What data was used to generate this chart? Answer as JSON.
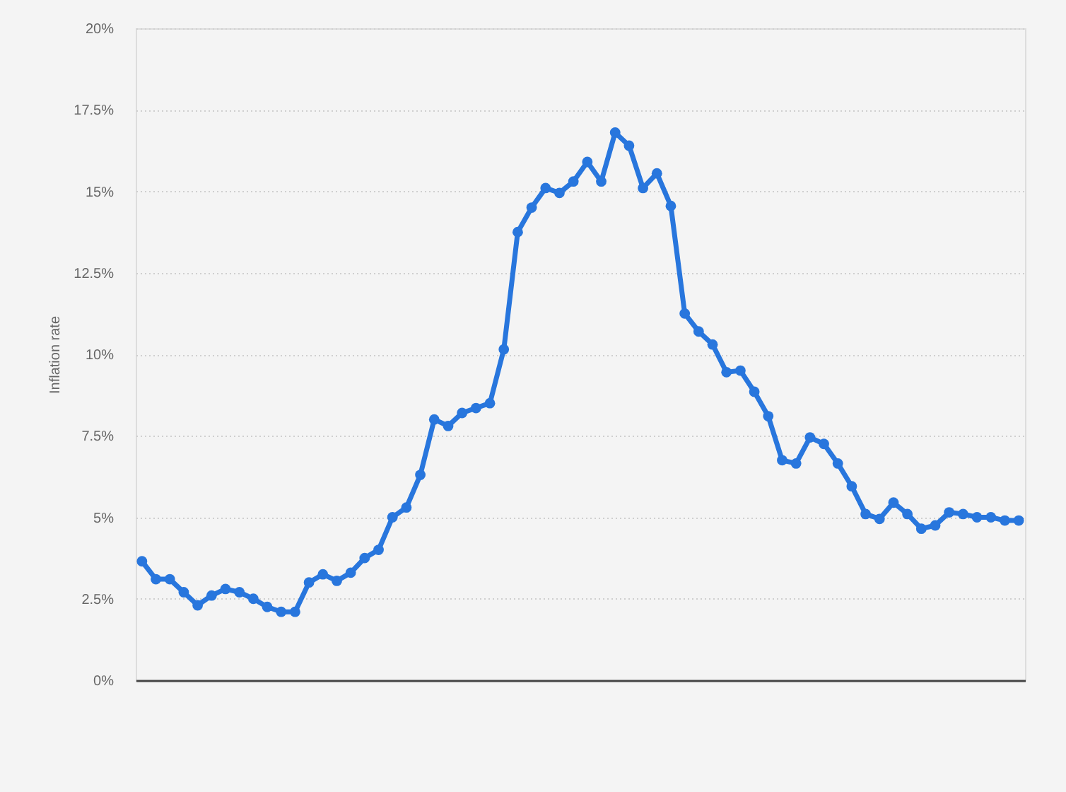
{
  "chart_data": {
    "type": "line",
    "ylabel": "Inflation rate",
    "categories": [
      null,
      null,
      null,
      null,
      null,
      null,
      null,
      null,
      null,
      null,
      null,
      null,
      null,
      null,
      null,
      null,
      null,
      null,
      null,
      null,
      null,
      null,
      null,
      null,
      null,
      null,
      null,
      null,
      null,
      null,
      null,
      null,
      null,
      null,
      null,
      null,
      null,
      null,
      null,
      null,
      null,
      null,
      null,
      null,
      null,
      null,
      null,
      null,
      null,
      null,
      null,
      null,
      null,
      null,
      null,
      null,
      null,
      null,
      null,
      null,
      null,
      null,
      null,
      null
    ],
    "series": [
      {
        "color": "#2876dd",
        "values": [
          3.65,
          3.1,
          3.1,
          2.7,
          2.3,
          2.6,
          2.8,
          2.7,
          2.5,
          2.25,
          2.1,
          2.1,
          3.0,
          3.25,
          3.05,
          3.3,
          3.75,
          4.0,
          5.0,
          5.3,
          6.3,
          8.0,
          7.8,
          8.2,
          8.35,
          8.5,
          10.15,
          13.75,
          14.5,
          15.1,
          14.95,
          15.3,
          15.9,
          15.3,
          16.8,
          16.4,
          15.1,
          15.55,
          14.55,
          11.25,
          10.7,
          10.3,
          9.45,
          9.5,
          8.85,
          8.1,
          6.75,
          6.65,
          7.45,
          7.25,
          6.65,
          5.95,
          5.1,
          4.95,
          5.45,
          5.1,
          4.65,
          4.75,
          5.15,
          5.1,
          5.0,
          5.0,
          4.9,
          4.9
        ]
      }
    ],
    "ylim": [
      0,
      20
    ],
    "yticks": [
      {
        "value": 0,
        "label": "0%"
      },
      {
        "value": 2.5,
        "label": "2.5%"
      },
      {
        "value": 5,
        "label": "5%"
      },
      {
        "value": 7.5,
        "label": "7.5%"
      },
      {
        "value": 10,
        "label": "10%"
      },
      {
        "value": 12.5,
        "label": "12.5%"
      },
      {
        "value": 15,
        "label": "15%"
      },
      {
        "value": 17.5,
        "label": "17.5%"
      },
      {
        "value": 20,
        "label": "20%"
      }
    ],
    "grid": "y",
    "tick_labels": "y",
    "marker": "circle",
    "line_style": "solid"
  }
}
